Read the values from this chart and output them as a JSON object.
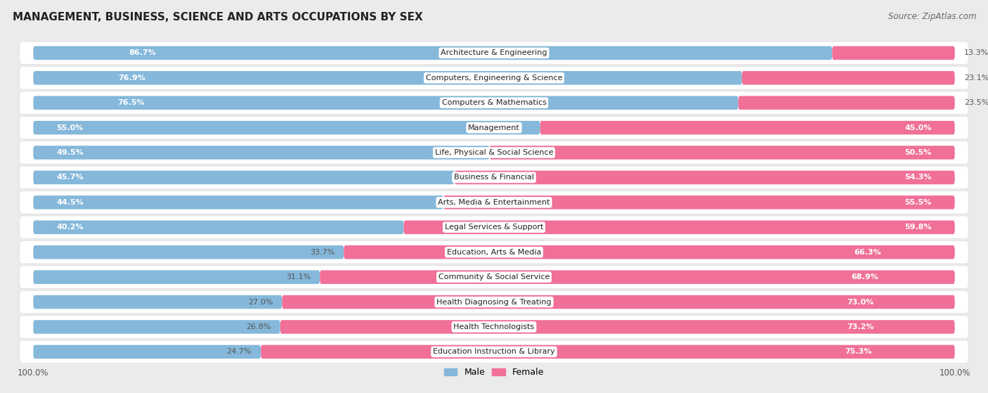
{
  "title": "Management, Business, Science and Arts Occupations by Sex",
  "title_display": "MANAGEMENT, BUSINESS, SCIENCE AND ARTS OCCUPATIONS BY SEX",
  "source": "Source: ZipAtlas.com",
  "categories": [
    "Architecture & Engineering",
    "Computers, Engineering & Science",
    "Computers & Mathematics",
    "Management",
    "Life, Physical & Social Science",
    "Business & Financial",
    "Arts, Media & Entertainment",
    "Legal Services & Support",
    "Education, Arts & Media",
    "Community & Social Service",
    "Health Diagnosing & Treating",
    "Health Technologists",
    "Education Instruction & Library"
  ],
  "male_pct": [
    86.7,
    76.9,
    76.5,
    55.0,
    49.5,
    45.7,
    44.5,
    40.2,
    33.7,
    31.1,
    27.0,
    26.8,
    24.7
  ],
  "female_pct": [
    13.3,
    23.1,
    23.5,
    45.0,
    50.5,
    54.3,
    55.5,
    59.8,
    66.3,
    68.9,
    73.0,
    73.2,
    75.3
  ],
  "male_color": "#85B8DA",
  "female_color": "#F07098",
  "background_color": "#EBEBEB",
  "row_bg_color": "#FFFFFF",
  "row_border_color": "#DDDDDD",
  "title_fontsize": 11,
  "source_fontsize": 8.5,
  "label_fontsize": 8,
  "category_fontsize": 8,
  "legend_fontsize": 9,
  "male_inside_threshold": 60,
  "female_inside_threshold": 40
}
